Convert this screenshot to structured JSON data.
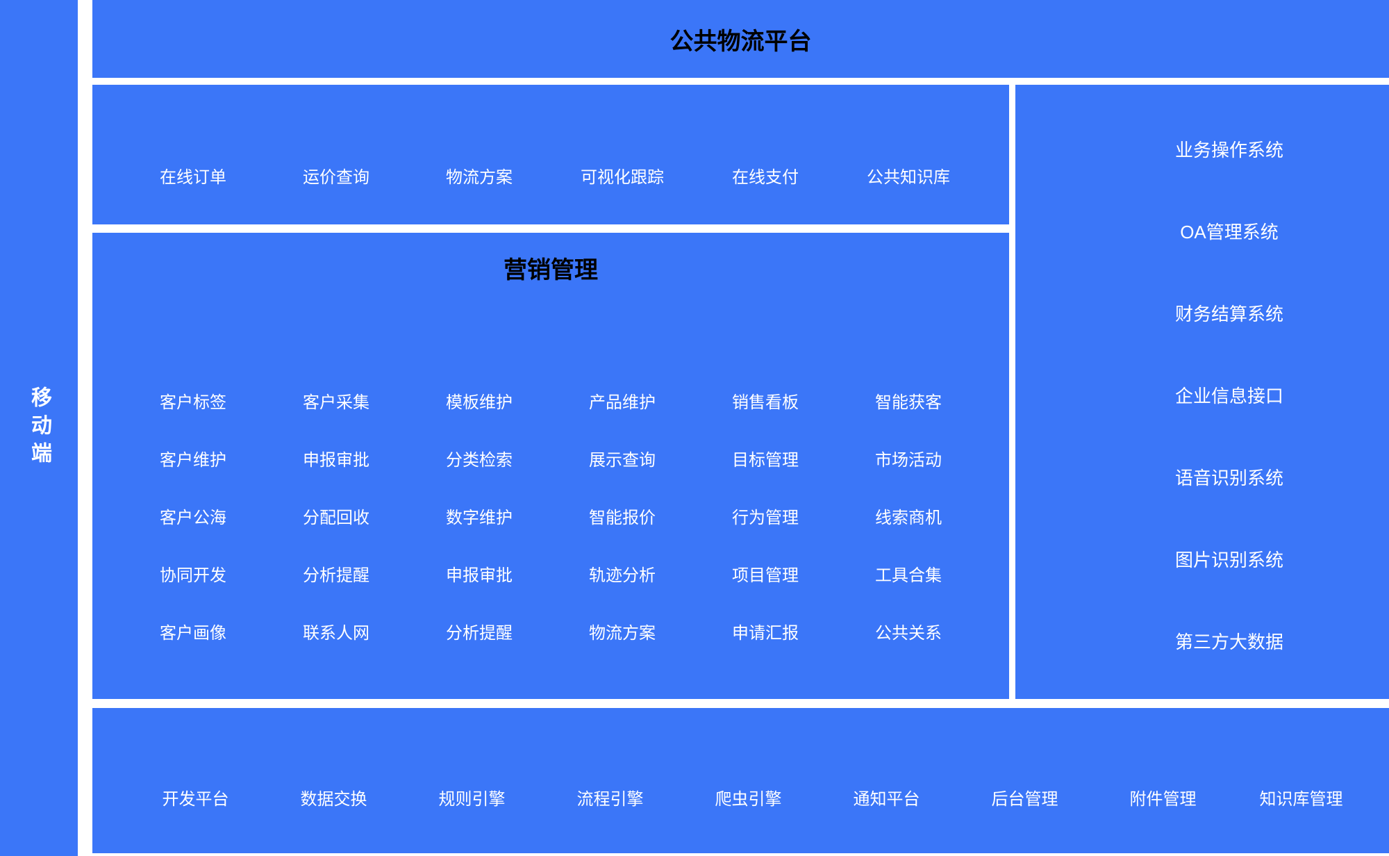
{
  "colors": {
    "primary_blue": "#3b76f8",
    "title_text": "#000000",
    "item_text": "#ffffff",
    "background": "#ffffff"
  },
  "left_sidebar": {
    "label": "移动端"
  },
  "top_banner": {
    "title": "公共物流平台"
  },
  "service_menu": {
    "items": [
      "在线订单",
      "运价查询",
      "物流方案",
      "可视化跟踪",
      "在线支付",
      "公共知识库"
    ]
  },
  "marketing_section": {
    "title": "营销管理",
    "grid": [
      [
        "客户标签",
        "客户采集",
        "模板维护",
        "产品维护",
        "销售看板",
        "智能获客"
      ],
      [
        "客户维护",
        "申报审批",
        "分类检索",
        "展示查询",
        "目标管理",
        "市场活动"
      ],
      [
        "客户公海",
        "分配回收",
        "数字维护",
        "智能报价",
        "行为管理",
        "线索商机"
      ],
      [
        "协同开发",
        "分析提醒",
        "申报审批",
        "轨迹分析",
        "项目管理",
        "工具合集"
      ],
      [
        "客户画像",
        "联系人网",
        "分析提醒",
        "物流方案",
        "申请汇报",
        "公共关系"
      ]
    ]
  },
  "systems_panel": {
    "items": [
      "业务操作系统",
      "OA管理系统",
      "财务结算系统",
      "企业信息接口",
      "语音识别系统",
      "图片识别系统",
      "第三方大数据"
    ]
  },
  "platform_bar": {
    "items": [
      "开发平台",
      "数据交换",
      "规则引擎",
      "流程引擎",
      "爬虫引擎",
      "通知平台",
      "后台管理",
      "附件管理",
      "知识库管理"
    ]
  }
}
